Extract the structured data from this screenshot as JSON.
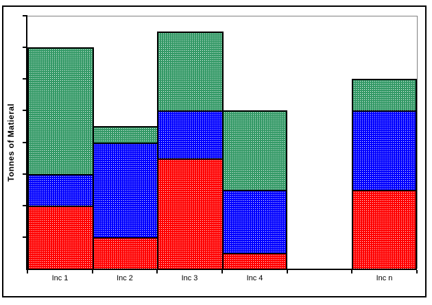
{
  "chart_data": {
    "type": "bar",
    "stacked": true,
    "title": "",
    "ylabel": "Tonnes of Matieral",
    "xlabel": "",
    "categories": [
      "Inc 1",
      "Inc 2",
      "Inc 3",
      "Inc 4",
      "",
      "Inc n"
    ],
    "series": [
      {
        "name": "bottom-red",
        "color": "#FF0000",
        "values": [
          2,
          1,
          3.5,
          0.5,
          0,
          2.5
        ]
      },
      {
        "name": "middle-blue",
        "color": "#0000FF",
        "values": [
          1,
          3,
          1.5,
          2,
          0,
          2.5
        ]
      },
      {
        "name": "top-green",
        "color": "#339966",
        "values": [
          4,
          0.5,
          2.5,
          2.5,
          0,
          1
        ]
      }
    ],
    "ylim": [
      0,
      8
    ],
    "y_tick_interval": 1,
    "y_tick_labels": "none",
    "x_tick_marks": "category-boundaries",
    "legend_position": "none",
    "grid": "top-border-only",
    "fill_pattern": "white-dot-dither",
    "axis_color": "#000000",
    "plot_border_color": "#808080",
    "frame_color": "#000000",
    "background": "#FFFFFF"
  }
}
